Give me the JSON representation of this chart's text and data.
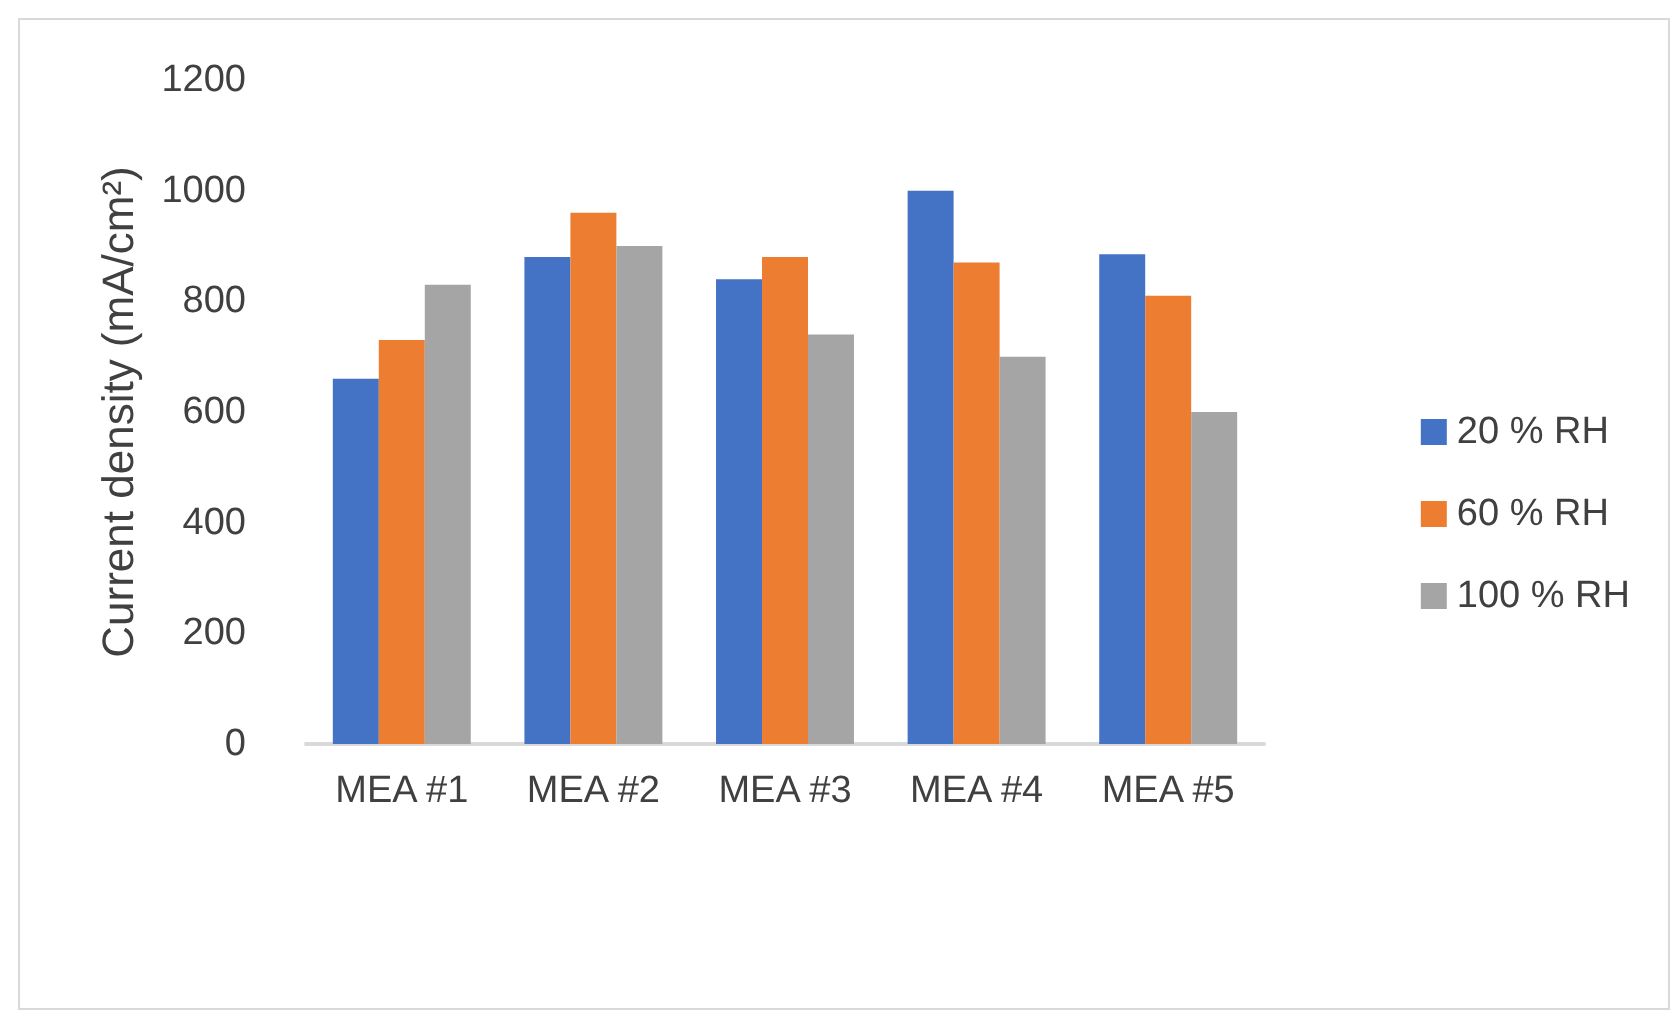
{
  "chart_data": {
    "type": "bar",
    "ylabel": "Current density (mA/cm²)",
    "categories": [
      "MEA #1",
      "MEA #2",
      "MEA #3",
      "MEA #4",
      "MEA #5"
    ],
    "series": [
      {
        "name": "20 % RH",
        "color": "#4472c4",
        "values": [
          660,
          880,
          840,
          1000,
          885
        ]
      },
      {
        "name": "60 % RH",
        "color": "#ed7d31",
        "values": [
          730,
          960,
          880,
          870,
          810
        ]
      },
      {
        "name": "100 % RH",
        "color": "#a5a5a5",
        "values": [
          830,
          900,
          740,
          700,
          600
        ]
      }
    ],
    "ylim": [
      0,
      1200
    ],
    "yticks": [
      0,
      200,
      400,
      600,
      800,
      1000,
      1200
    ],
    "grid": false,
    "legend": "right"
  }
}
